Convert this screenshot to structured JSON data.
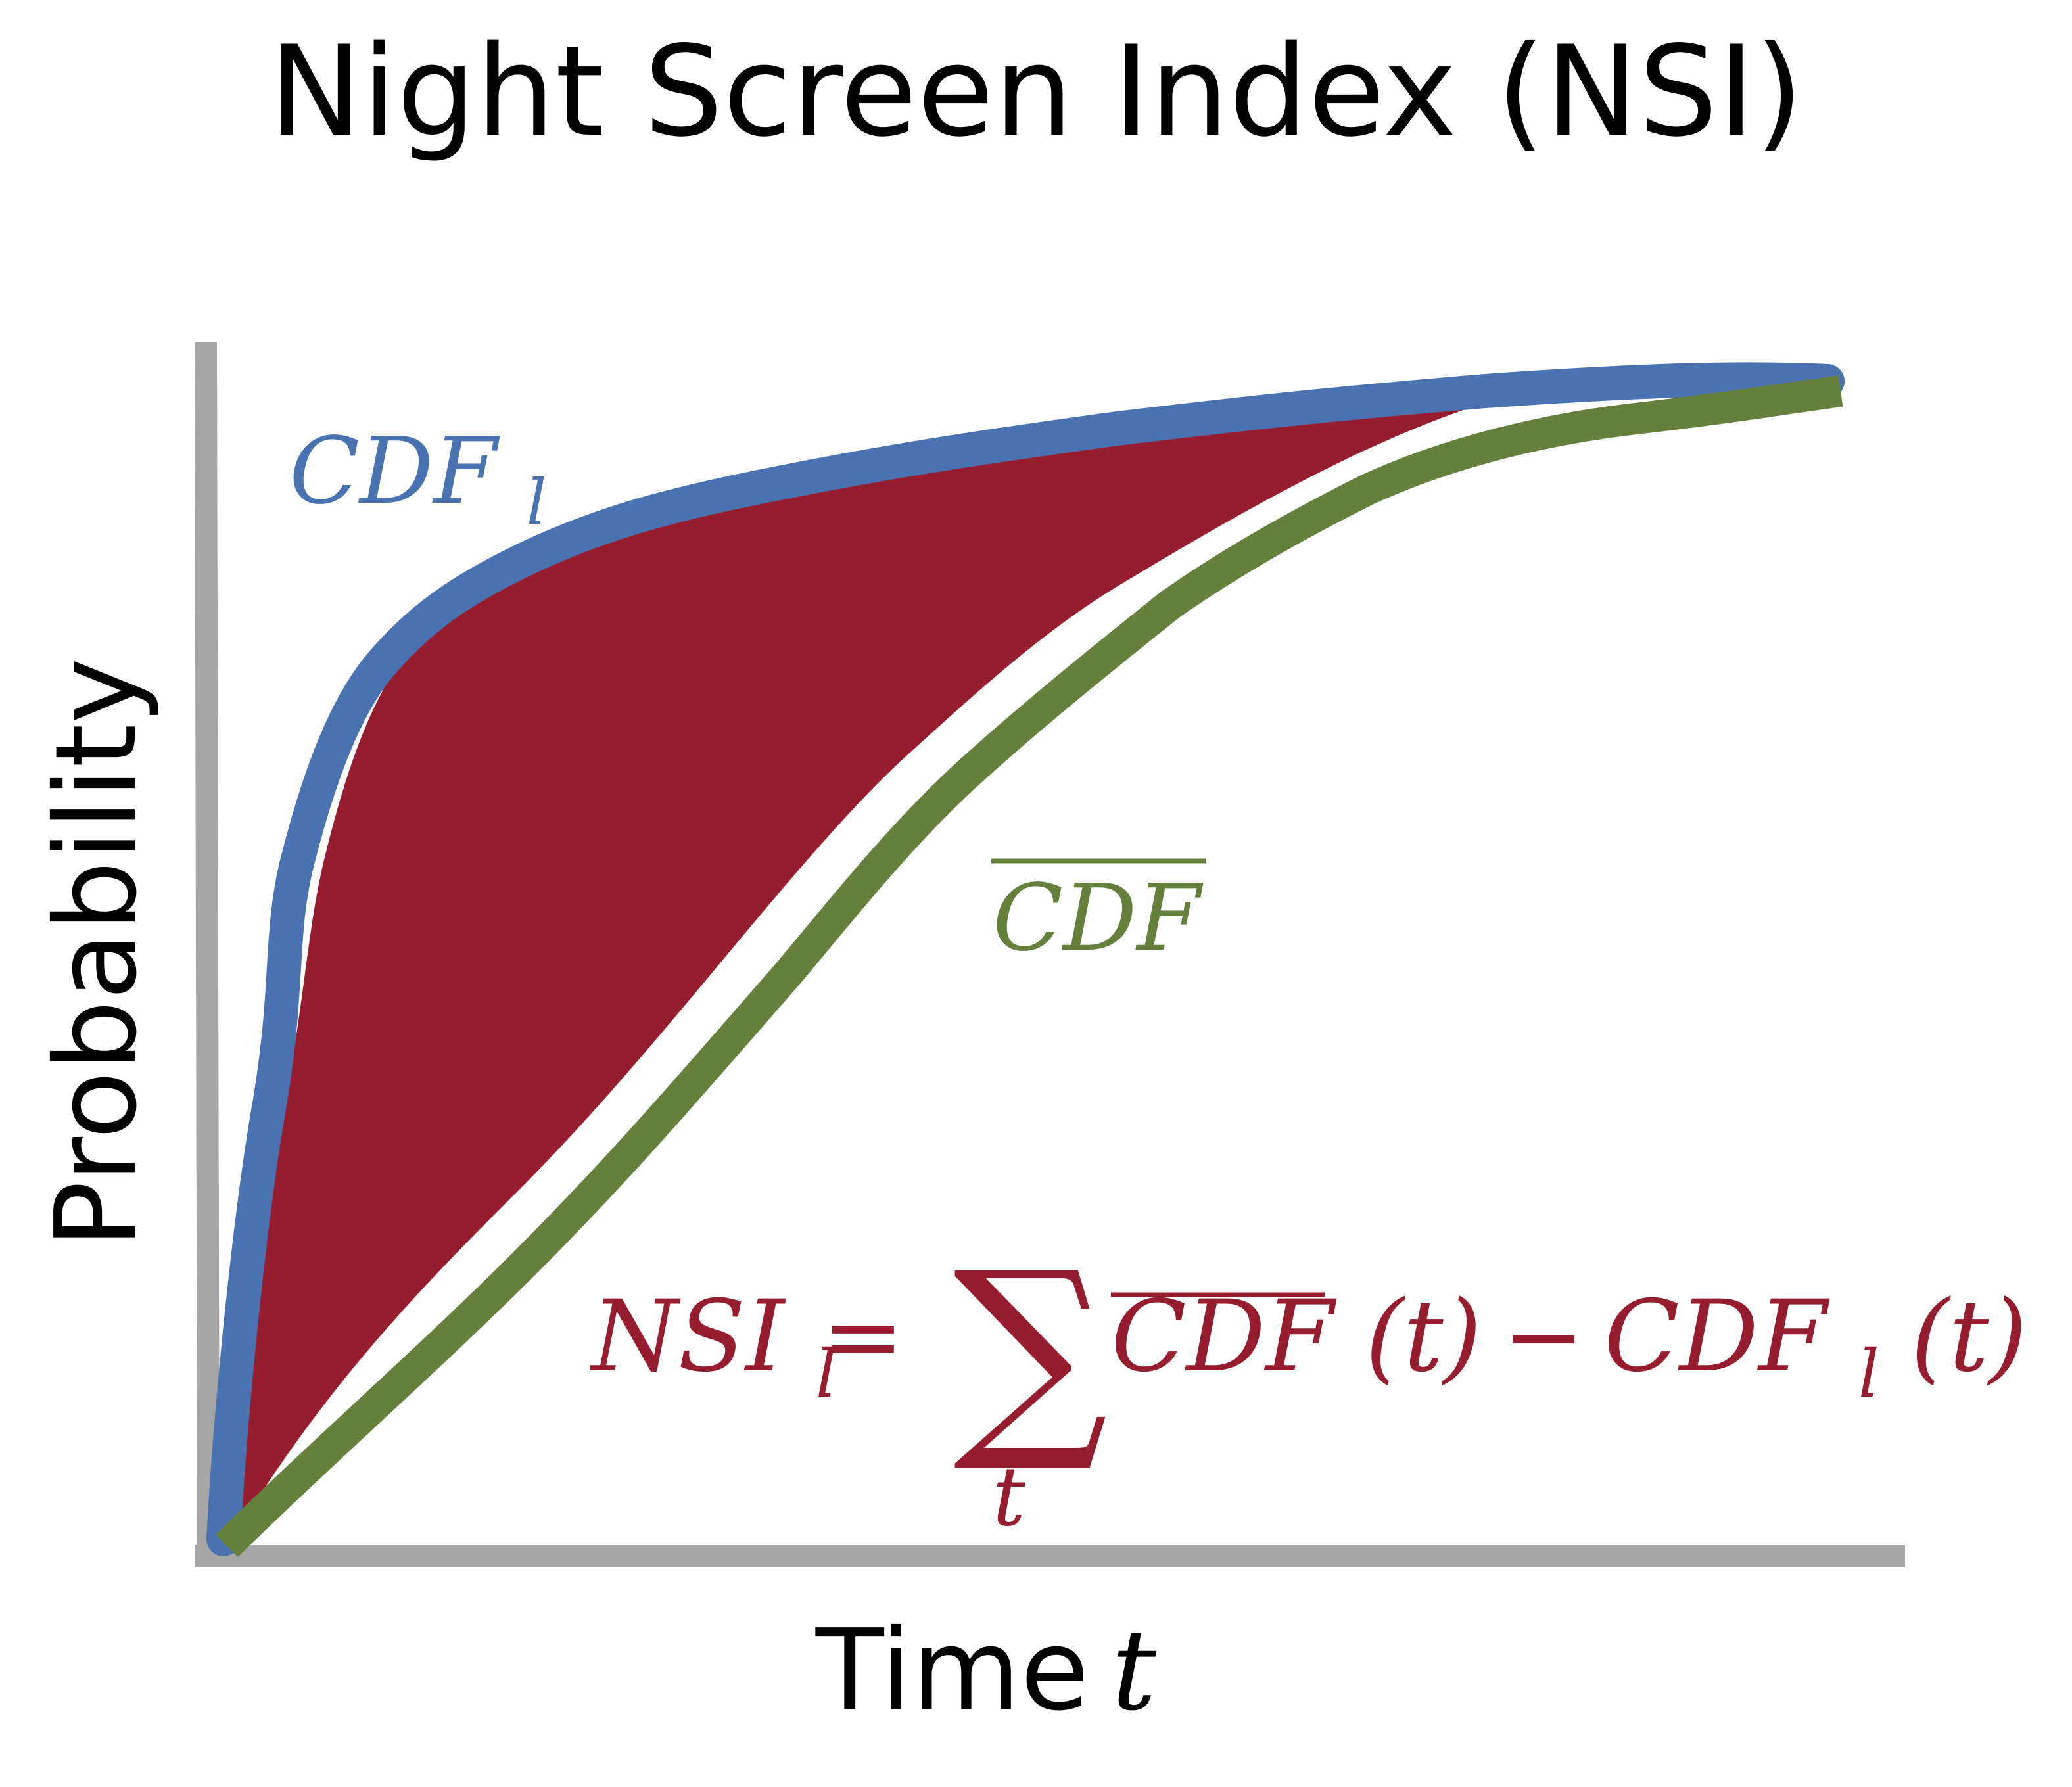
{
  "title": "Night Screen Index (NSI)",
  "y_axis_label": "Probability",
  "x_axis_label": {
    "text": "Time",
    "variable": "t"
  },
  "colors": {
    "cdf_l": "#4a72b0",
    "cdf_bar": "#65803c",
    "nsi_area": "#961d2f",
    "axes": "#a6a6a6",
    "text": "#000000"
  },
  "labels": {
    "cdf_l": {
      "base": "CDF",
      "subscript": "l"
    },
    "cdf_bar": {
      "base": "CDF"
    }
  },
  "equation": {
    "lhs": "NSI",
    "lhs_subscript": "l",
    "equals": "=",
    "sum_symbol": "∑",
    "sum_index": "t",
    "term1": "CDF",
    "term1_arg": "(t)",
    "minus": "−",
    "term2": "CDF",
    "term2_subscript": "l",
    "term2_arg": "(t)"
  }
}
